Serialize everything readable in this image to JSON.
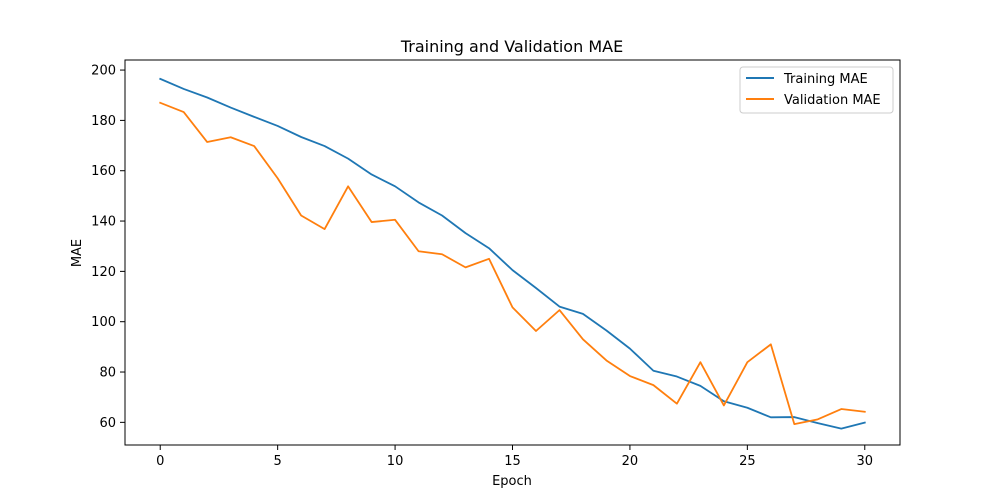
{
  "chart_data": {
    "type": "line",
    "title": "Training and Validation MAE",
    "xlabel": "Epoch",
    "ylabel": "MAE",
    "xlim": [
      -1.5,
      31.5
    ],
    "ylim": [
      51,
      204
    ],
    "xticks": [
      0,
      5,
      10,
      15,
      20,
      25,
      30
    ],
    "yticks": [
      60,
      80,
      100,
      120,
      140,
      160,
      180,
      200
    ],
    "grid": false,
    "legend_position": "top-right",
    "x": [
      0,
      1,
      2,
      3,
      4,
      5,
      6,
      7,
      8,
      9,
      10,
      11,
      12,
      13,
      14,
      15,
      16,
      17,
      18,
      19,
      20,
      21,
      22,
      23,
      24,
      25,
      26,
      27,
      28,
      29,
      30
    ],
    "series": [
      {
        "name": "Training MAE",
        "color": "#1f77b4",
        "values": [
          196.5,
          192.5,
          189.1,
          185.1,
          181.4,
          177.8,
          173.4,
          169.8,
          164.8,
          158.5,
          153.8,
          147.4,
          142.2,
          135.2,
          129.2,
          120.5,
          113.4,
          106.0,
          103.1,
          96.5,
          89.3,
          80.5,
          78.2,
          74.5,
          68.4,
          65.8,
          62.0,
          62.1,
          59.7,
          57.5,
          59.9
        ]
      },
      {
        "name": "Validation MAE",
        "color": "#ff7f0e",
        "values": [
          187.0,
          183.3,
          171.4,
          173.3,
          169.8,
          157.0,
          142.2,
          136.8,
          153.8,
          139.6,
          140.5,
          128.0,
          126.8,
          121.6,
          125.0,
          105.7,
          96.3,
          104.6,
          93.0,
          84.6,
          78.4,
          74.8,
          67.4,
          83.9,
          66.7,
          83.9,
          91.0,
          59.3,
          61.2,
          65.3,
          64.2
        ]
      }
    ]
  }
}
